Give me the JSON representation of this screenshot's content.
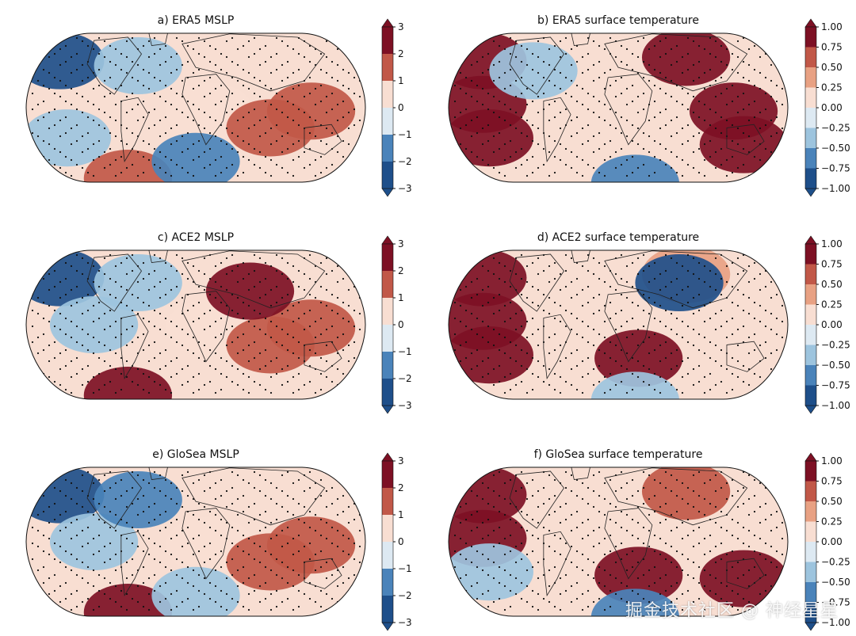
{
  "chart_data": [
    {
      "type": "heatmap",
      "panel": "a",
      "title": "a) ERA5 MSLP",
      "colorbar": {
        "ticks": [
          "3",
          "2",
          "1",
          "0",
          "−1",
          "−2",
          "−3"
        ],
        "range": [
          -3,
          3
        ],
        "levels": 6
      },
      "anomaly_regions": [
        {
          "region": "north-pacific",
          "value": -2.5
        },
        {
          "region": "south-pacific",
          "value": -1.2
        },
        {
          "region": "north-atlantic",
          "value": -1.5
        },
        {
          "region": "africa",
          "value": 0.5
        },
        {
          "region": "indian-ocean",
          "value": 1.5
        },
        {
          "region": "maritime-continent",
          "value": 2.2
        },
        {
          "region": "southern-ocean-pacific",
          "value": 2.0
        },
        {
          "region": "southern-ocean-atlantic",
          "value": -1.8
        }
      ]
    },
    {
      "type": "heatmap",
      "panel": "b",
      "title": "b) ERA5 surface temperature",
      "colorbar": {
        "ticks": [
          "1.00",
          "0.75",
          "0.50",
          "0.25",
          "0.00",
          "−0.25",
          "−0.50",
          "−0.75",
          "−1.00"
        ],
        "range": [
          -1,
          1
        ],
        "levels": 8
      },
      "anomaly_regions": [
        {
          "region": "tropical-east-pacific",
          "value": 1.0
        },
        {
          "region": "north-pacific",
          "value": 0.9
        },
        {
          "region": "eurasia",
          "value": 0.9
        },
        {
          "region": "north-america",
          "value": -0.3
        },
        {
          "region": "south-pacific",
          "value": 0.9
        },
        {
          "region": "southern-ocean",
          "value": -0.7
        },
        {
          "region": "maritime-continent",
          "value": 0.9
        },
        {
          "region": "australia",
          "value": 0.8
        }
      ]
    },
    {
      "type": "heatmap",
      "panel": "c",
      "title": "c) ACE2 MSLP",
      "colorbar": {
        "ticks": [
          "3",
          "2",
          "1",
          "0",
          "−1",
          "−2",
          "−3"
        ],
        "range": [
          -3,
          3
        ],
        "levels": 6
      },
      "anomaly_regions": [
        {
          "region": "north-pacific",
          "value": -2.5
        },
        {
          "region": "east-pacific",
          "value": -1.2
        },
        {
          "region": "north-atlantic",
          "value": -1.2
        },
        {
          "region": "africa",
          "value": 0.5
        },
        {
          "region": "indian-ocean",
          "value": 1.5
        },
        {
          "region": "maritime-continent",
          "value": 2.2
        },
        {
          "region": "southern-ocean-pacific",
          "value": 2.5
        },
        {
          "region": "middle-east",
          "value": 2.5
        }
      ]
    },
    {
      "type": "heatmap",
      "panel": "d",
      "title": "d) ACE2 surface temperature",
      "colorbar": {
        "ticks": [
          "1.00",
          "0.75",
          "0.50",
          "0.25",
          "0.00",
          "−0.25",
          "−0.50",
          "−0.75",
          "−1.00"
        ],
        "range": [
          -1,
          1
        ],
        "levels": 8
      },
      "anomaly_regions": [
        {
          "region": "tropical-east-pacific",
          "value": 1.0
        },
        {
          "region": "north-pacific",
          "value": 0.9
        },
        {
          "region": "eurasia",
          "value": 0.3
        },
        {
          "region": "central-asia",
          "value": -0.8
        },
        {
          "region": "southern-africa",
          "value": 0.9
        },
        {
          "region": "southern-ocean",
          "value": -0.4
        },
        {
          "region": "south-pacific",
          "value": 0.8
        }
      ]
    },
    {
      "type": "heatmap",
      "panel": "e",
      "title": "e) GloSea MSLP",
      "colorbar": {
        "ticks": [
          "3",
          "2",
          "1",
          "0",
          "−1",
          "−2",
          "−3"
        ],
        "range": [
          -3,
          3
        ],
        "levels": 6
      },
      "anomaly_regions": [
        {
          "region": "north-pacific",
          "value": -2.5
        },
        {
          "region": "east-pacific",
          "value": -1.2
        },
        {
          "region": "north-atlantic",
          "value": -2.2
        },
        {
          "region": "africa",
          "value": 0.5
        },
        {
          "region": "indian-ocean",
          "value": 1.5
        },
        {
          "region": "maritime-continent",
          "value": 2.2
        },
        {
          "region": "southern-ocean-pacific",
          "value": 2.5
        },
        {
          "region": "southern-ocean-atlantic",
          "value": -1.5
        }
      ]
    },
    {
      "type": "heatmap",
      "panel": "f",
      "title": "f) GloSea surface temperature",
      "colorbar": {
        "ticks": [
          "1.00",
          "0.75",
          "0.50",
          "0.25",
          "0.00",
          "−0.25",
          "−0.50",
          "−0.75",
          "−1.00"
        ],
        "range": [
          -1,
          1
        ],
        "levels": 8
      },
      "anomaly_regions": [
        {
          "region": "tropical-east-pacific",
          "value": 1.0
        },
        {
          "region": "north-pacific",
          "value": 0.9
        },
        {
          "region": "eurasia",
          "value": 0.6
        },
        {
          "region": "southern-africa",
          "value": 0.9
        },
        {
          "region": "australia",
          "value": 0.9
        },
        {
          "region": "southern-ocean",
          "value": -0.6
        },
        {
          "region": "south-pacific",
          "value": -0.5
        }
      ]
    }
  ],
  "colors": {
    "rdbu_r": [
      "#1e4f8a",
      "#4a83ba",
      "#9dc4de",
      "#dde9f2",
      "#f8ded2",
      "#e8a183",
      "#c15848",
      "#7d1024"
    ],
    "land_outline": "#222222",
    "stipple": "#111111"
  },
  "watermark": "掘金技术社区 @ 神经星星"
}
